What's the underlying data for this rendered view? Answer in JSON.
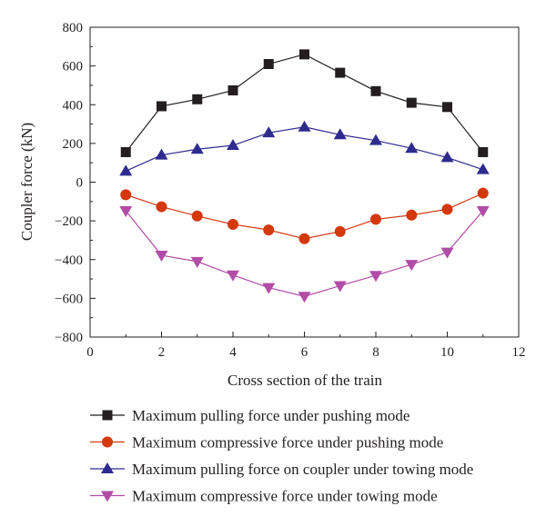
{
  "chart_data": {
    "type": "line",
    "xlabel": "Cross section of the train",
    "ylabel": "Coupler force (kN)",
    "xlim": [
      0,
      12
    ],
    "ylim": [
      -800,
      800
    ],
    "xticks": [
      0,
      2,
      4,
      6,
      8,
      10,
      12
    ],
    "yticks": [
      800,
      600,
      400,
      200,
      0,
      -200,
      -400,
      -600,
      -800
    ],
    "ytick_labels": [
      "800",
      "600",
      "400",
      "200",
      "0",
      "−200",
      "−400",
      "−600",
      "−800"
    ],
    "grid": false,
    "legend_position": "bottom",
    "x": [
      1,
      2,
      3,
      4,
      5,
      6,
      7,
      8,
      9,
      10,
      11
    ],
    "series": [
      {
        "name": "Maximum pulling force under pushing mode",
        "color": "#231f20",
        "marker": "square",
        "values": [
          155,
          392,
          428,
          474,
          610,
          660,
          565,
          470,
          410,
          388,
          155
        ]
      },
      {
        "name": "Maximum compressive force under pushing mode",
        "color": "#d4380d",
        "marker": "circle",
        "values": [
          -65,
          -127,
          -175,
          -218,
          -247,
          -292,
          -255,
          -192,
          -170,
          -140,
          -57
        ]
      },
      {
        "name": "Maximum pulling force on coupler under towing mode",
        "color": "#2e2b8f",
        "marker": "triangle-up",
        "values": [
          57,
          140,
          170,
          190,
          255,
          285,
          245,
          215,
          175,
          127,
          65
        ]
      },
      {
        "name": "Maximum compressive force under towing mode",
        "color": "#b24ca6",
        "marker": "triangle-down",
        "values": [
          -148,
          -378,
          -410,
          -480,
          -545,
          -590,
          -535,
          -482,
          -425,
          -362,
          -148
        ]
      }
    ]
  }
}
